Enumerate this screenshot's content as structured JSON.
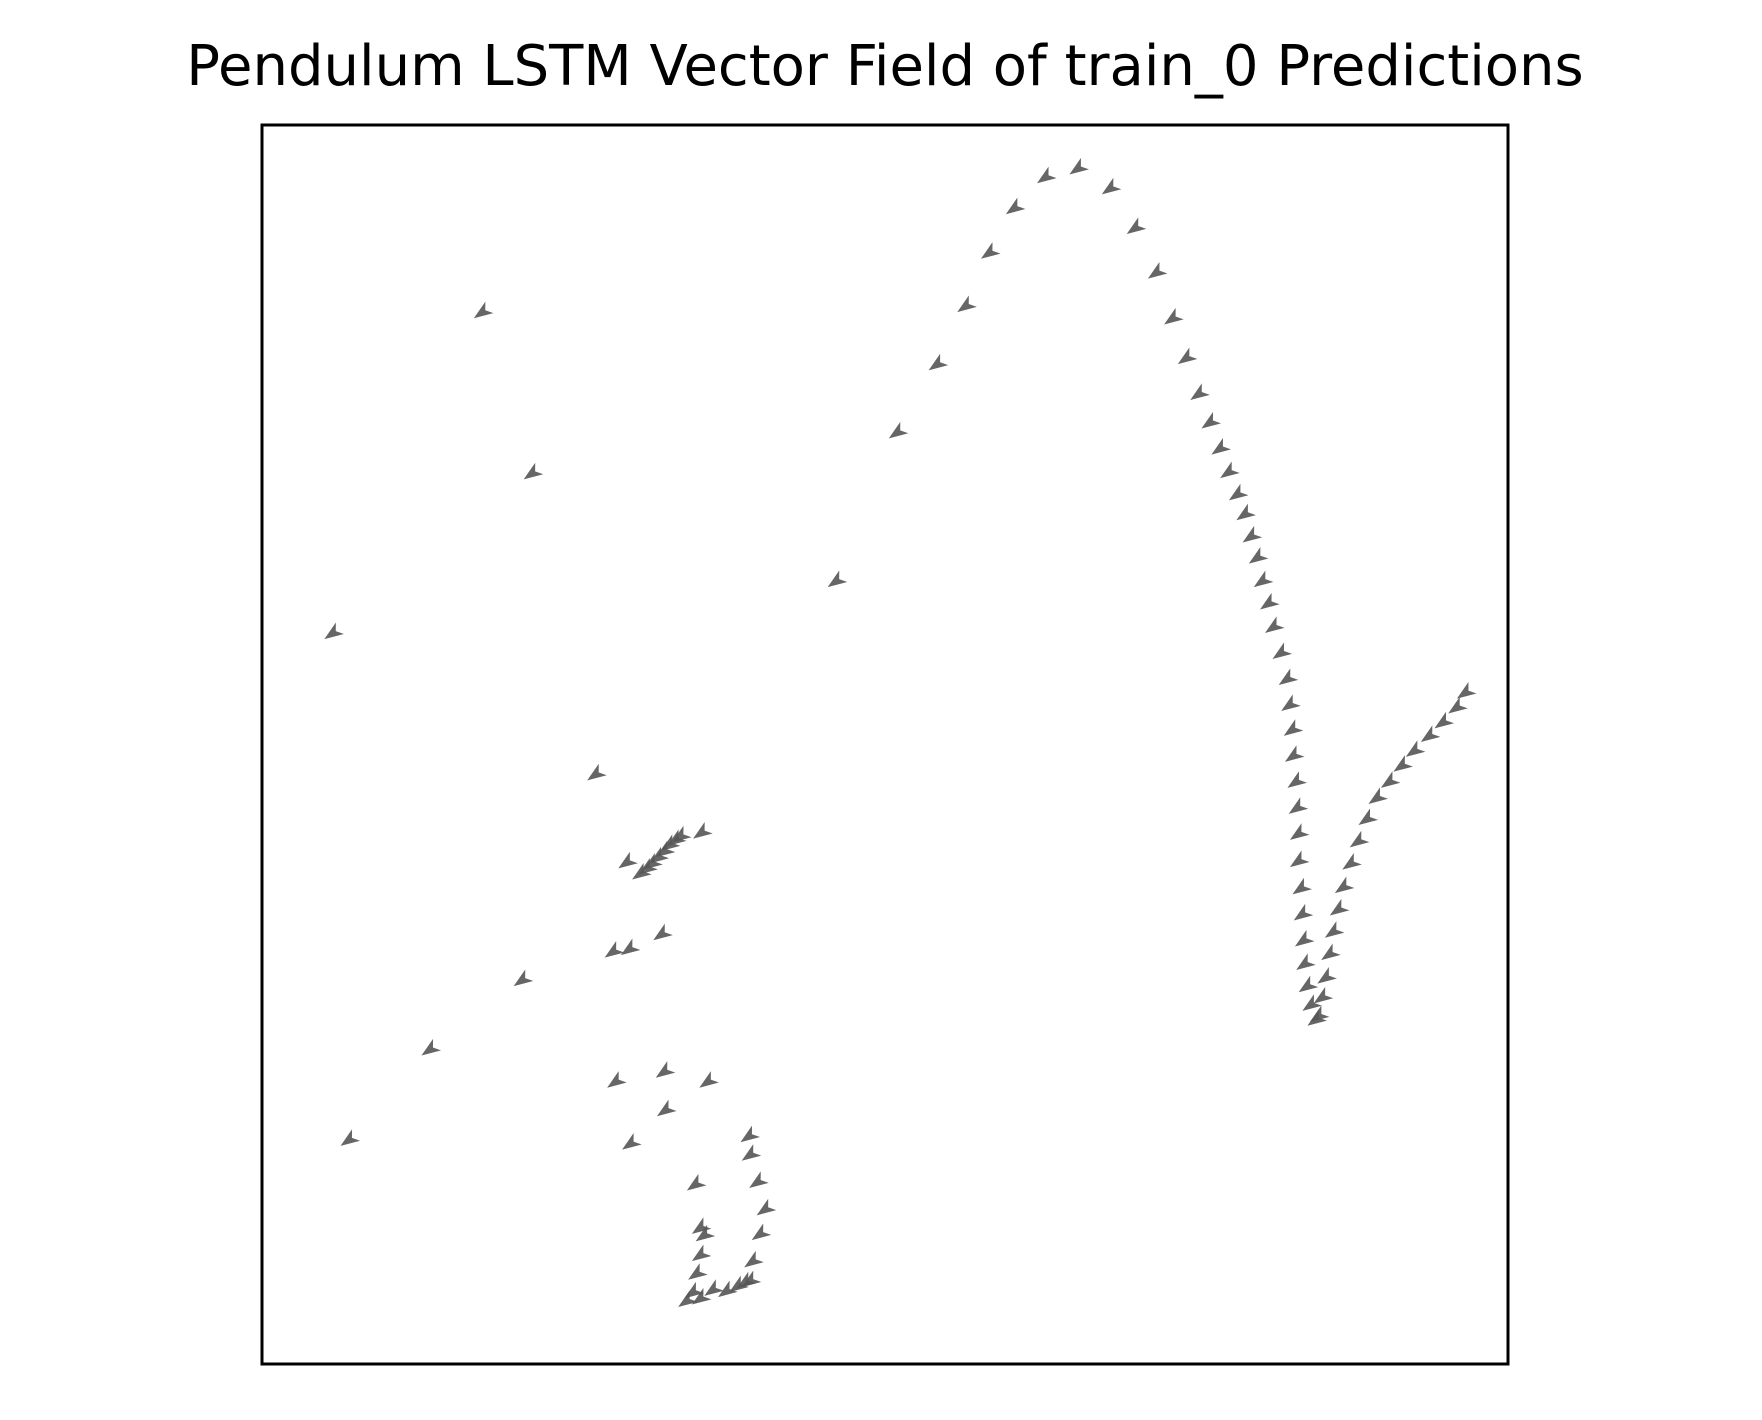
{
  "chart_data": {
    "type": "quiver",
    "title": "Pendulum LSTM Vector Field of train_0  Predictions",
    "xlim": [
      0,
      1
    ],
    "ylim": [
      0,
      1
    ],
    "color": "#555555",
    "x": [
      0.622,
      0.648,
      0.674,
      0.597,
      0.694,
      0.577,
      0.711,
      0.558,
      0.724,
      0.535,
      0.735,
      0.503,
      0.745,
      0.754,
      0.762,
      0.769,
      0.776,
      0.782,
      0.787,
      0.792,
      0.796,
      0.801,
      0.805,
      0.811,
      0.816,
      0.818,
      0.82,
      0.821,
      0.823,
      0.824,
      0.825,
      0.825,
      0.827,
      0.828,
      0.829,
      0.83,
      0.832,
      0.835,
      0.839,
      0.841,
      0.844,
      0.847,
      0.85,
      0.853,
      0.857,
      0.861,
      0.867,
      0.873,
      0.88,
      0.888,
      0.898,
      0.908,
      0.918,
      0.93,
      0.941,
      0.952,
      0.959,
      0.17,
      0.21,
      0.05,
      0.454,
      0.261,
      0.346,
      0.286,
      0.275,
      0.288,
      0.314,
      0.202,
      0.128,
      0.277,
      0.316,
      0.351,
      0.317,
      0.289,
      0.063,
      0.384,
      0.385,
      0.341,
      0.391,
      0.397,
      0.345,
      0.393,
      0.387,
      0.381,
      0.297,
      0.302,
      0.306,
      0.311,
      0.316,
      0.32,
      0.325,
      0.329,
      0.348,
      0.345,
      0.342,
      0.339,
      0.334,
      0.345,
      0.355,
      0.366,
      0.375,
      0.385
    ],
    "y": [
      0.953,
      0.96,
      0.944,
      0.928,
      0.912,
      0.892,
      0.876,
      0.849,
      0.839,
      0.802,
      0.807,
      0.747,
      0.778,
      0.755,
      0.734,
      0.715,
      0.697,
      0.681,
      0.663,
      0.646,
      0.627,
      0.609,
      0.59,
      0.569,
      0.548,
      0.527,
      0.507,
      0.486,
      0.465,
      0.444,
      0.423,
      0.401,
      0.379,
      0.358,
      0.337,
      0.318,
      0.3,
      0.285,
      0.273,
      0.276,
      0.291,
      0.307,
      0.326,
      0.344,
      0.362,
      0.38,
      0.399,
      0.417,
      0.435,
      0.452,
      0.465,
      0.478,
      0.49,
      0.502,
      0.513,
      0.525,
      0.537,
      0.844,
      0.714,
      0.585,
      0.627,
      0.471,
      0.424,
      0.4,
      0.328,
      0.33,
      0.342,
      0.305,
      0.249,
      0.223,
      0.231,
      0.223,
      0.2,
      0.173,
      0.176,
      0.179,
      0.164,
      0.14,
      0.142,
      0.12,
      0.105,
      0.1,
      0.078,
      0.061,
      0.391,
      0.395,
      0.399,
      0.404,
      0.409,
      0.414,
      0.418,
      0.421,
      0.099,
      0.083,
      0.068,
      0.053,
      0.046,
      0.048,
      0.055,
      0.054,
      0.058,
      0.062
    ]
  }
}
